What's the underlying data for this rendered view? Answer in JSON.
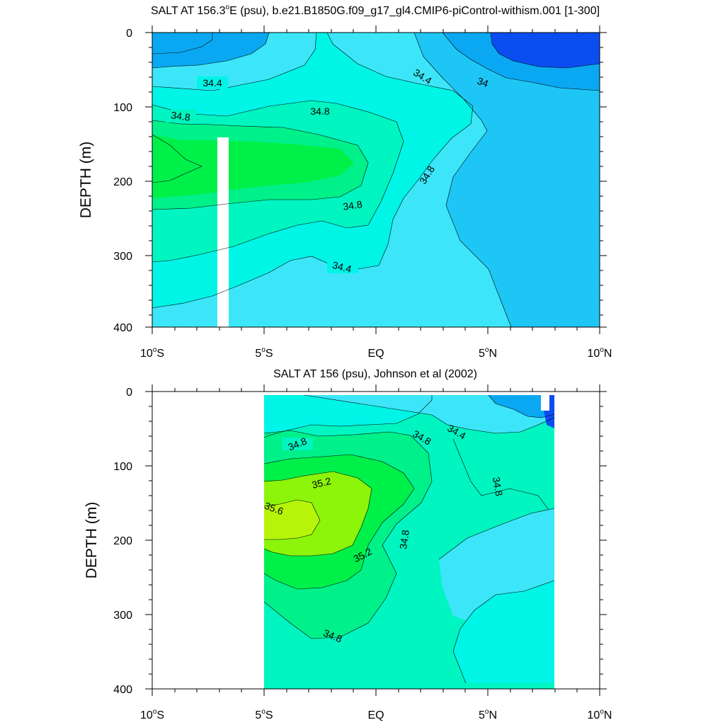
{
  "chart_data": [
    {
      "type": "contour",
      "title": "SALT AT 156.3°E (psu), b.e21.B1850G.f09_g17_gl4.CMIP6-piControl-withism.001 [1-300]",
      "title_parts": {
        "pre": "SALT AT 156.3",
        "sup": "o",
        "post": "E (psu), b.e21.B1850G.f09_g17_gl4.CMIP6-piControl-withism.001 [1-300]"
      },
      "ylabel": "DEPTH (m)",
      "xlim": [
        -10,
        10
      ],
      "ylim": [
        400,
        0
      ],
      "yticks": [
        "0",
        "100",
        "200",
        "300",
        "400"
      ],
      "xticks": [
        {
          "num": "10",
          "sup": "o",
          "hemi": "S"
        },
        {
          "num": "5",
          "sup": "o",
          "hemi": "S"
        },
        {
          "text": "EQ"
        },
        {
          "num": "5",
          "sup": "o",
          "hemi": "N"
        },
        {
          "num": "10",
          "sup": "o",
          "hemi": "N"
        }
      ],
      "contour_interval": 0.2,
      "contour_labels": [
        "34.4",
        "34.8",
        "34.8",
        "34.8",
        "34.4",
        "34",
        "34.4",
        "34.8",
        "34.4"
      ],
      "levels": [
        {
          "salinity": 33.8,
          "color": "#0a4ef2"
        },
        {
          "salinity": 34.0,
          "color": "#0aa8f2"
        },
        {
          "salinity": 34.2,
          "color": "#1ec6f5"
        },
        {
          "salinity": 34.4,
          "color": "#3ce6f8"
        },
        {
          "salinity": 34.6,
          "color": "#00f5e7"
        },
        {
          "salinity": 34.8,
          "color": "#00f5c0"
        },
        {
          "salinity": 35.0,
          "color": "#00f08a"
        },
        {
          "salinity": 35.2,
          "color": "#00f04a"
        }
      ]
    },
    {
      "type": "contour",
      "title": "SALT AT 156 (psu), Johnson et al (2002)",
      "ylabel": "DEPTH (m)",
      "xlim": [
        -10,
        10
      ],
      "ylim": [
        400,
        0
      ],
      "data_extent_lon": [
        -5,
        8
      ],
      "yticks": [
        "0",
        "100",
        "200",
        "300",
        "400"
      ],
      "xticks": [
        {
          "num": "10",
          "sup": "o",
          "hemi": "S"
        },
        {
          "num": "5",
          "sup": "o",
          "hemi": "S"
        },
        {
          "text": "EQ"
        },
        {
          "num": "5",
          "sup": "o",
          "hemi": "N"
        },
        {
          "num": "10",
          "sup": "o",
          "hemi": "N"
        }
      ],
      "contour_interval": 0.2,
      "contour_labels": [
        "34.8",
        "34.8",
        "34.4",
        "35.2",
        "34.8",
        "35.6",
        "35.2",
        "34.8",
        "34.8"
      ],
      "levels": [
        {
          "salinity": 34.0,
          "color": "#0a4ef2"
        },
        {
          "salinity": 34.2,
          "color": "#0aa8f2"
        },
        {
          "salinity": 34.4,
          "color": "#3ce6f8"
        },
        {
          "salinity": 34.6,
          "color": "#00f5e7"
        },
        {
          "salinity": 34.8,
          "color": "#00f5c0"
        },
        {
          "salinity": 35.0,
          "color": "#00f08a"
        },
        {
          "salinity": 35.2,
          "color": "#00f04a"
        },
        {
          "salinity": 35.4,
          "color": "#8cf50a"
        },
        {
          "salinity": 35.6,
          "color": "#f5f50a"
        }
      ]
    }
  ]
}
